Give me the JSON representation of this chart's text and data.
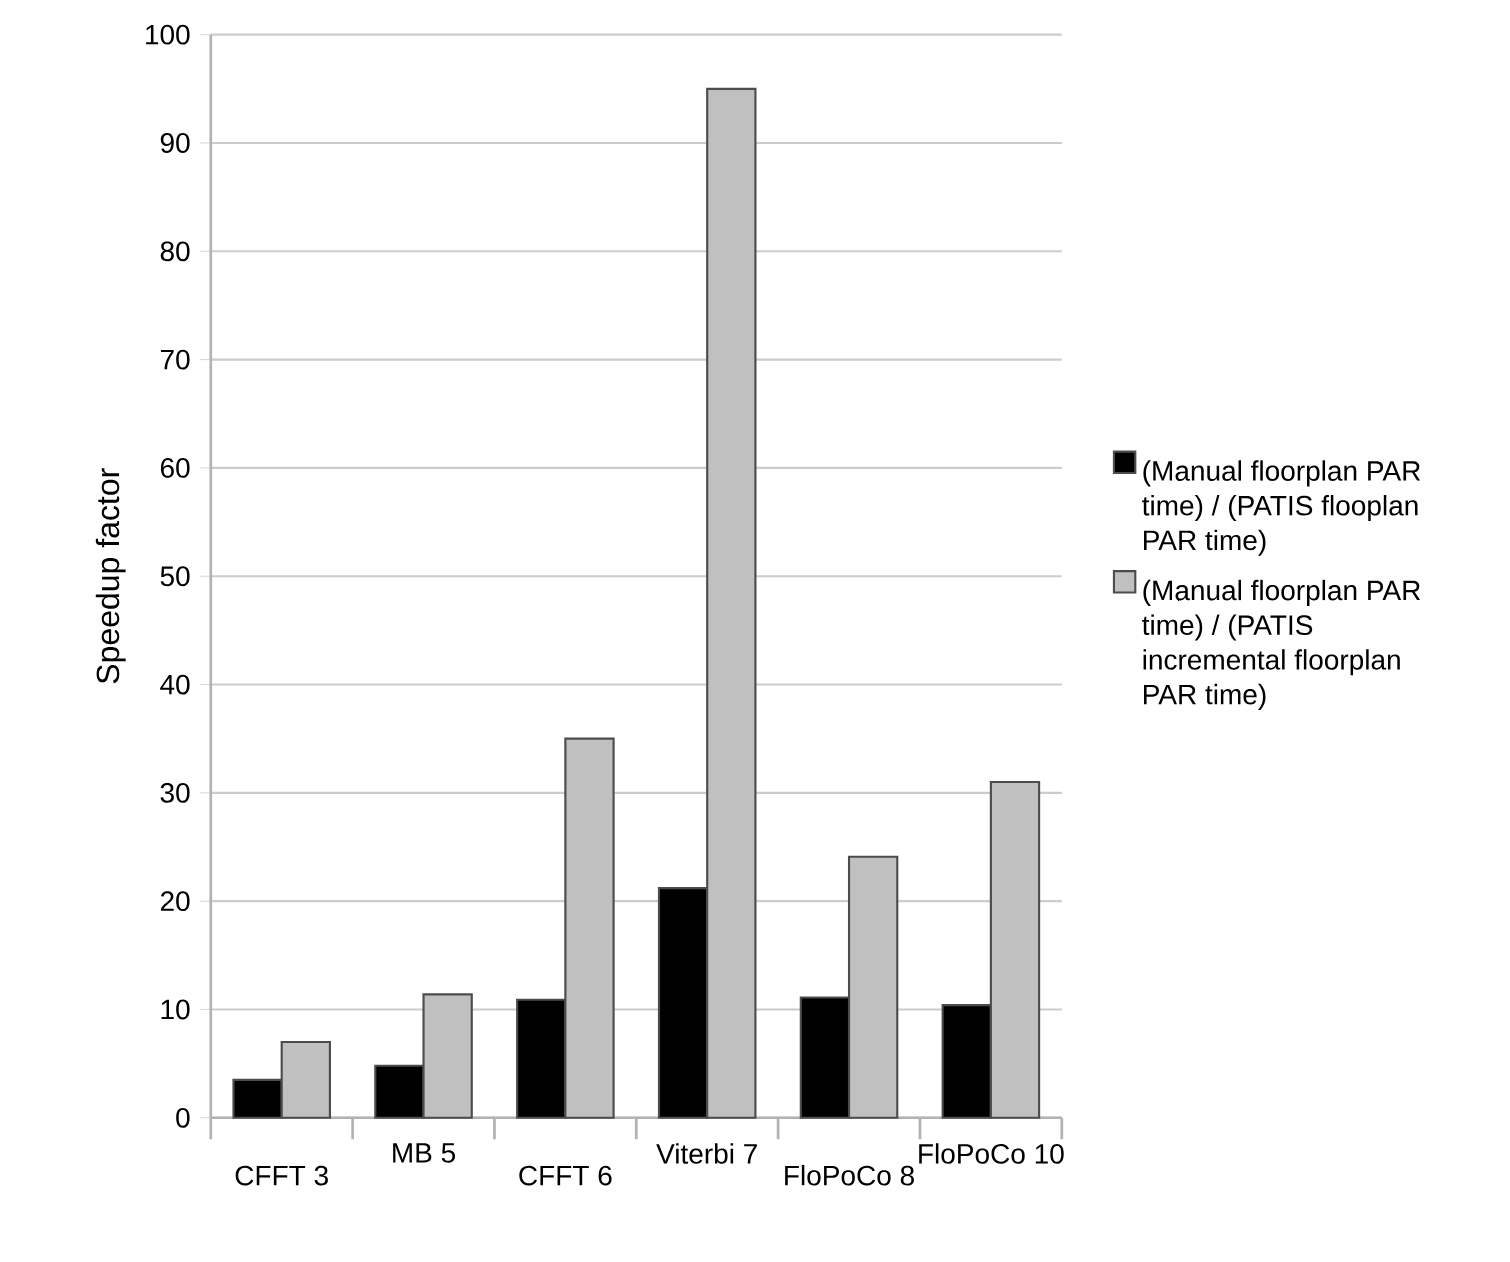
{
  "chart_data": {
    "type": "bar",
    "ylabel": "Speedup factor",
    "categories": [
      "CFFT 3",
      "MB 5",
      "CFFT 6",
      "Viterbi 7",
      "FloPoCo 8",
      "FloPoCo 10"
    ],
    "series": [
      {
        "name": "(Manual floorplan PAR time) / (PATIS flooplan PAR time)",
        "color": "#000000",
        "values": [
          3.5,
          4.8,
          10.9,
          21.2,
          11.1,
          10.4
        ]
      },
      {
        "name": "(Manual floorplan PAR time) / (PATIS incremental floorplan PAR time)",
        "color": "#c0c0c0",
        "values": [
          7.0,
          11.4,
          35.0,
          95,
          24.1,
          31.0
        ]
      }
    ],
    "ylim": [
      0,
      100
    ],
    "yticks": [
      0,
      10,
      20,
      30,
      40,
      50,
      60,
      70,
      80,
      90,
      100
    ],
    "grid": "y",
    "legend": "right"
  }
}
